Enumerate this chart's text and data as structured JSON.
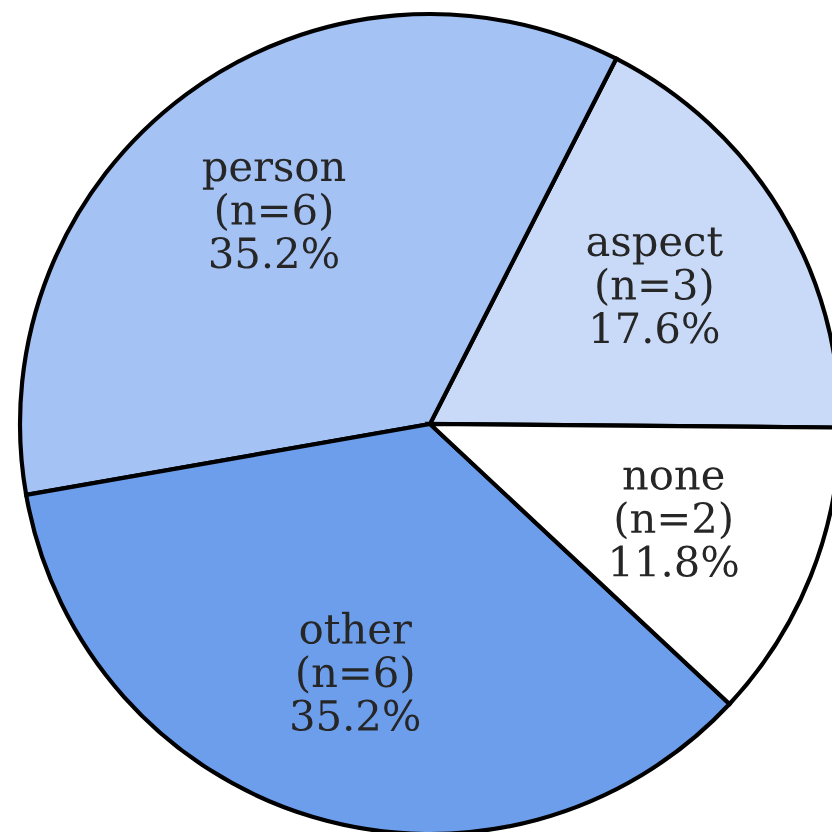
{
  "chart_data": {
    "type": "pie",
    "categories": [
      "aspect",
      "person",
      "other",
      "none"
    ],
    "values": [
      17.6,
      35.2,
      35.2,
      11.8
    ],
    "value_labels": [
      "(n=3)\n17.6%",
      "(n=6)\n35.2%",
      "(n=6)\n35.2%",
      "(n=2)\n11.8%"
    ],
    "colors": [
      "#c9daf8",
      "#a4c2f4",
      "#6d9eeb",
      "#ffffff"
    ],
    "legend": false
  }
}
